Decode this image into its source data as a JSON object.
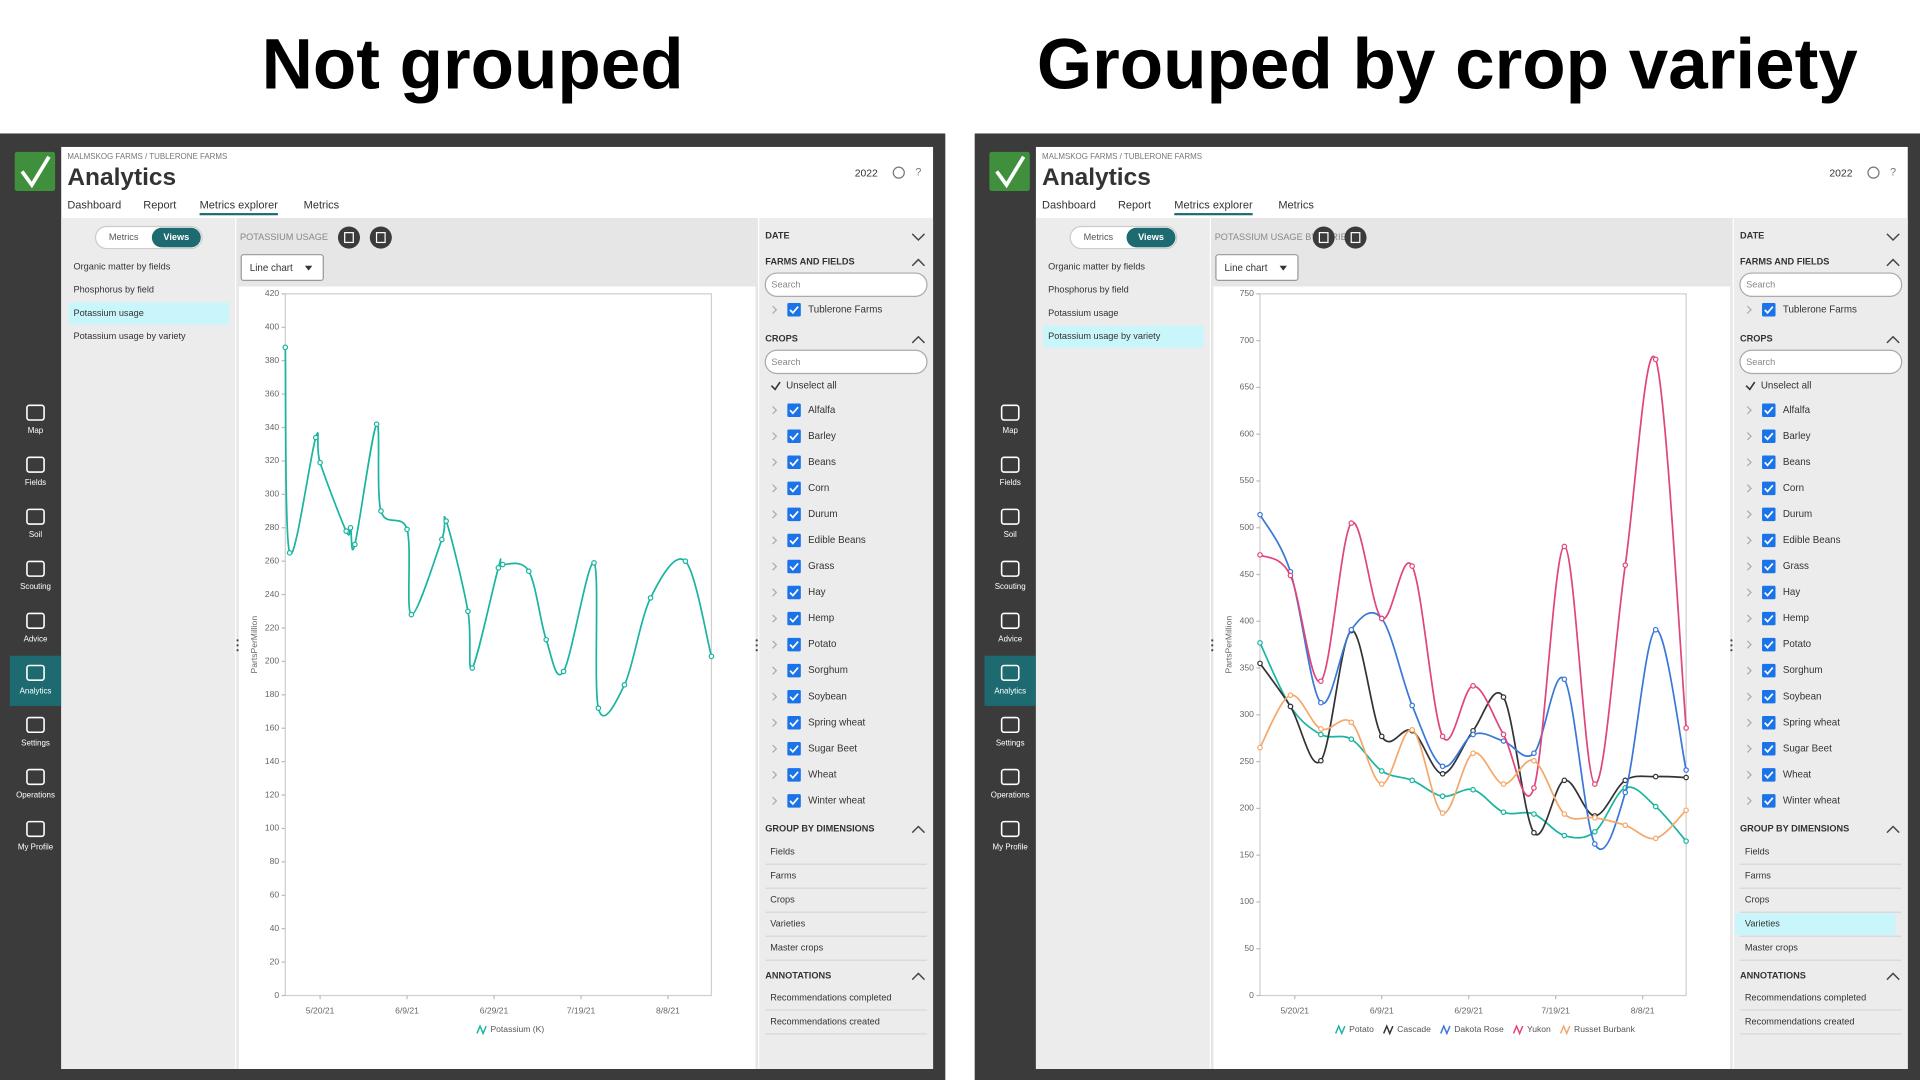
{
  "panels": [
    {
      "heading": "Not grouped",
      "view_title": "POTASSIUM USAGE",
      "selected_view": 2
    },
    {
      "heading": "Grouped by crop variety",
      "view_title": "POTASSIUM USAGE BY VARIETY",
      "selected_view": 3,
      "selected_group": 3
    }
  ],
  "app": {
    "breadcrumb": "MALMSKOG FARMS / TUBLERONE FARMS",
    "title": "Analytics",
    "year": "2022",
    "help": "?",
    "tabs": [
      "Dashboard",
      "Report",
      "Metrics explorer",
      "Metrics"
    ],
    "active_tab": 2,
    "nav": [
      "Map",
      "Fields",
      "Soil",
      "Scouting",
      "Advice",
      "Analytics",
      "Settings",
      "Operations",
      "My Profile"
    ],
    "active_nav": 5,
    "toggle": [
      "Metrics",
      "Views"
    ],
    "active_toggle": 1,
    "chart_type": "Line chart",
    "views": [
      "Organic matter by fields",
      "Phosphorus by field",
      "Potassium usage",
      "Potassium usage by variety"
    ],
    "filters": {
      "date": "DATE",
      "farms": {
        "heading": "FARMS AND FIELDS",
        "search": "Search",
        "items": [
          "Tublerone Farms"
        ]
      },
      "crops": {
        "heading": "CROPS",
        "search": "Search",
        "unselect": "Unselect all",
        "items": [
          "Alfalfa",
          "Barley",
          "Beans",
          "Corn",
          "Durum",
          "Edible Beans",
          "Grass",
          "Hay",
          "Hemp",
          "Potato",
          "Sorghum",
          "Soybean",
          "Spring wheat",
          "Sugar Beet",
          "Wheat",
          "Winter wheat"
        ]
      },
      "group": {
        "heading": "GROUP BY DIMENSIONS",
        "items": [
          "Fields",
          "Farms",
          "Crops",
          "Varieties",
          "Master crops"
        ]
      },
      "annotations": {
        "heading": "ANNOTATIONS",
        "items": [
          "Recommendations completed",
          "Recommendations created"
        ]
      }
    }
  },
  "chart_data": [
    {
      "type": "line",
      "y_label": "PartsPerMillion",
      "x": [
        "5/12/21",
        "5/13/21",
        "5/19/21",
        "5/20/21",
        "5/26/21",
        "5/27/21",
        "5/28/21",
        "6/2/21",
        "6/3/21",
        "6/9/21",
        "6/10/21",
        "6/17/21",
        "6/18/21",
        "6/23/21",
        "6/24/21",
        "6/30/21",
        "7/1/21",
        "7/7/21",
        "7/11/21",
        "7/15/21",
        "7/22/21",
        "7/23/21",
        "7/29/21",
        "8/4/21",
        "8/12/21",
        "8/18/21"
      ],
      "xlim": [
        "5/12/21",
        "8/18/21"
      ],
      "xticks": [
        "5/20/21",
        "6/9/21",
        "6/29/21",
        "7/19/21",
        "8/8/21"
      ],
      "ylim": [
        0,
        420
      ],
      "yticks": [
        0,
        20,
        40,
        60,
        80,
        100,
        120,
        140,
        160,
        180,
        200,
        220,
        240,
        260,
        280,
        300,
        320,
        340,
        360,
        380,
        400,
        420
      ],
      "series": [
        {
          "name": "Potassium (K)",
          "color": "#1ab5a0",
          "values": [
            388,
            265,
            334,
            319,
            278,
            280,
            270,
            342,
            290,
            279,
            228,
            273,
            284,
            230,
            196,
            256,
            258,
            254,
            213,
            194,
            259,
            172,
            186,
            238,
            260,
            203
          ]
        }
      ]
    },
    {
      "type": "line",
      "y_label": "PartsPerMillion",
      "x": [
        "5/12/21",
        "5/19/21",
        "5/26/21",
        "6/2/21",
        "6/9/21",
        "6/16/21",
        "6/23/21",
        "6/30/21",
        "7/7/21",
        "7/14/21",
        "7/21/21",
        "7/28/21",
        "8/4/21",
        "8/11/21",
        "8/18/21"
      ],
      "xlim": [
        "5/12/21",
        "8/18/21"
      ],
      "xticks": [
        "5/20/21",
        "6/9/21",
        "6/29/21",
        "7/19/21",
        "8/8/21"
      ],
      "ylim": [
        0,
        750
      ],
      "yticks": [
        0,
        50,
        100,
        150,
        200,
        250,
        300,
        350,
        400,
        450,
        500,
        550,
        600,
        650,
        700,
        750
      ],
      "series": [
        {
          "name": "Potato",
          "color": "#1ab5a0",
          "values": [
            377,
            309,
            279,
            274,
            240,
            230,
            213,
            220,
            196,
            194,
            171,
            175,
            222,
            202,
            165
          ]
        },
        {
          "name": "Cascade",
          "color": "#333333",
          "values": [
            355,
            309,
            251,
            390,
            277,
            283,
            237,
            283,
            319,
            174,
            230,
            192,
            230,
            234,
            233
          ]
        },
        {
          "name": "Dakota Rose",
          "color": "#3a78d8",
          "values": [
            514,
            453,
            313,
            391,
            403,
            310,
            245,
            279,
            272,
            259,
            338,
            162,
            217,
            391,
            241
          ]
        },
        {
          "name": "Yukon",
          "color": "#e0457b",
          "values": [
            471,
            449,
            336,
            505,
            403,
            459,
            277,
            331,
            279,
            222,
            480,
            226,
            460,
            680,
            286
          ]
        },
        {
          "name": "Russet Burbank",
          "color": "#f4a86b",
          "values": [
            265,
            321,
            285,
            292,
            226,
            284,
            195,
            259,
            226,
            251,
            194,
            190,
            182,
            168,
            198
          ]
        }
      ]
    }
  ]
}
